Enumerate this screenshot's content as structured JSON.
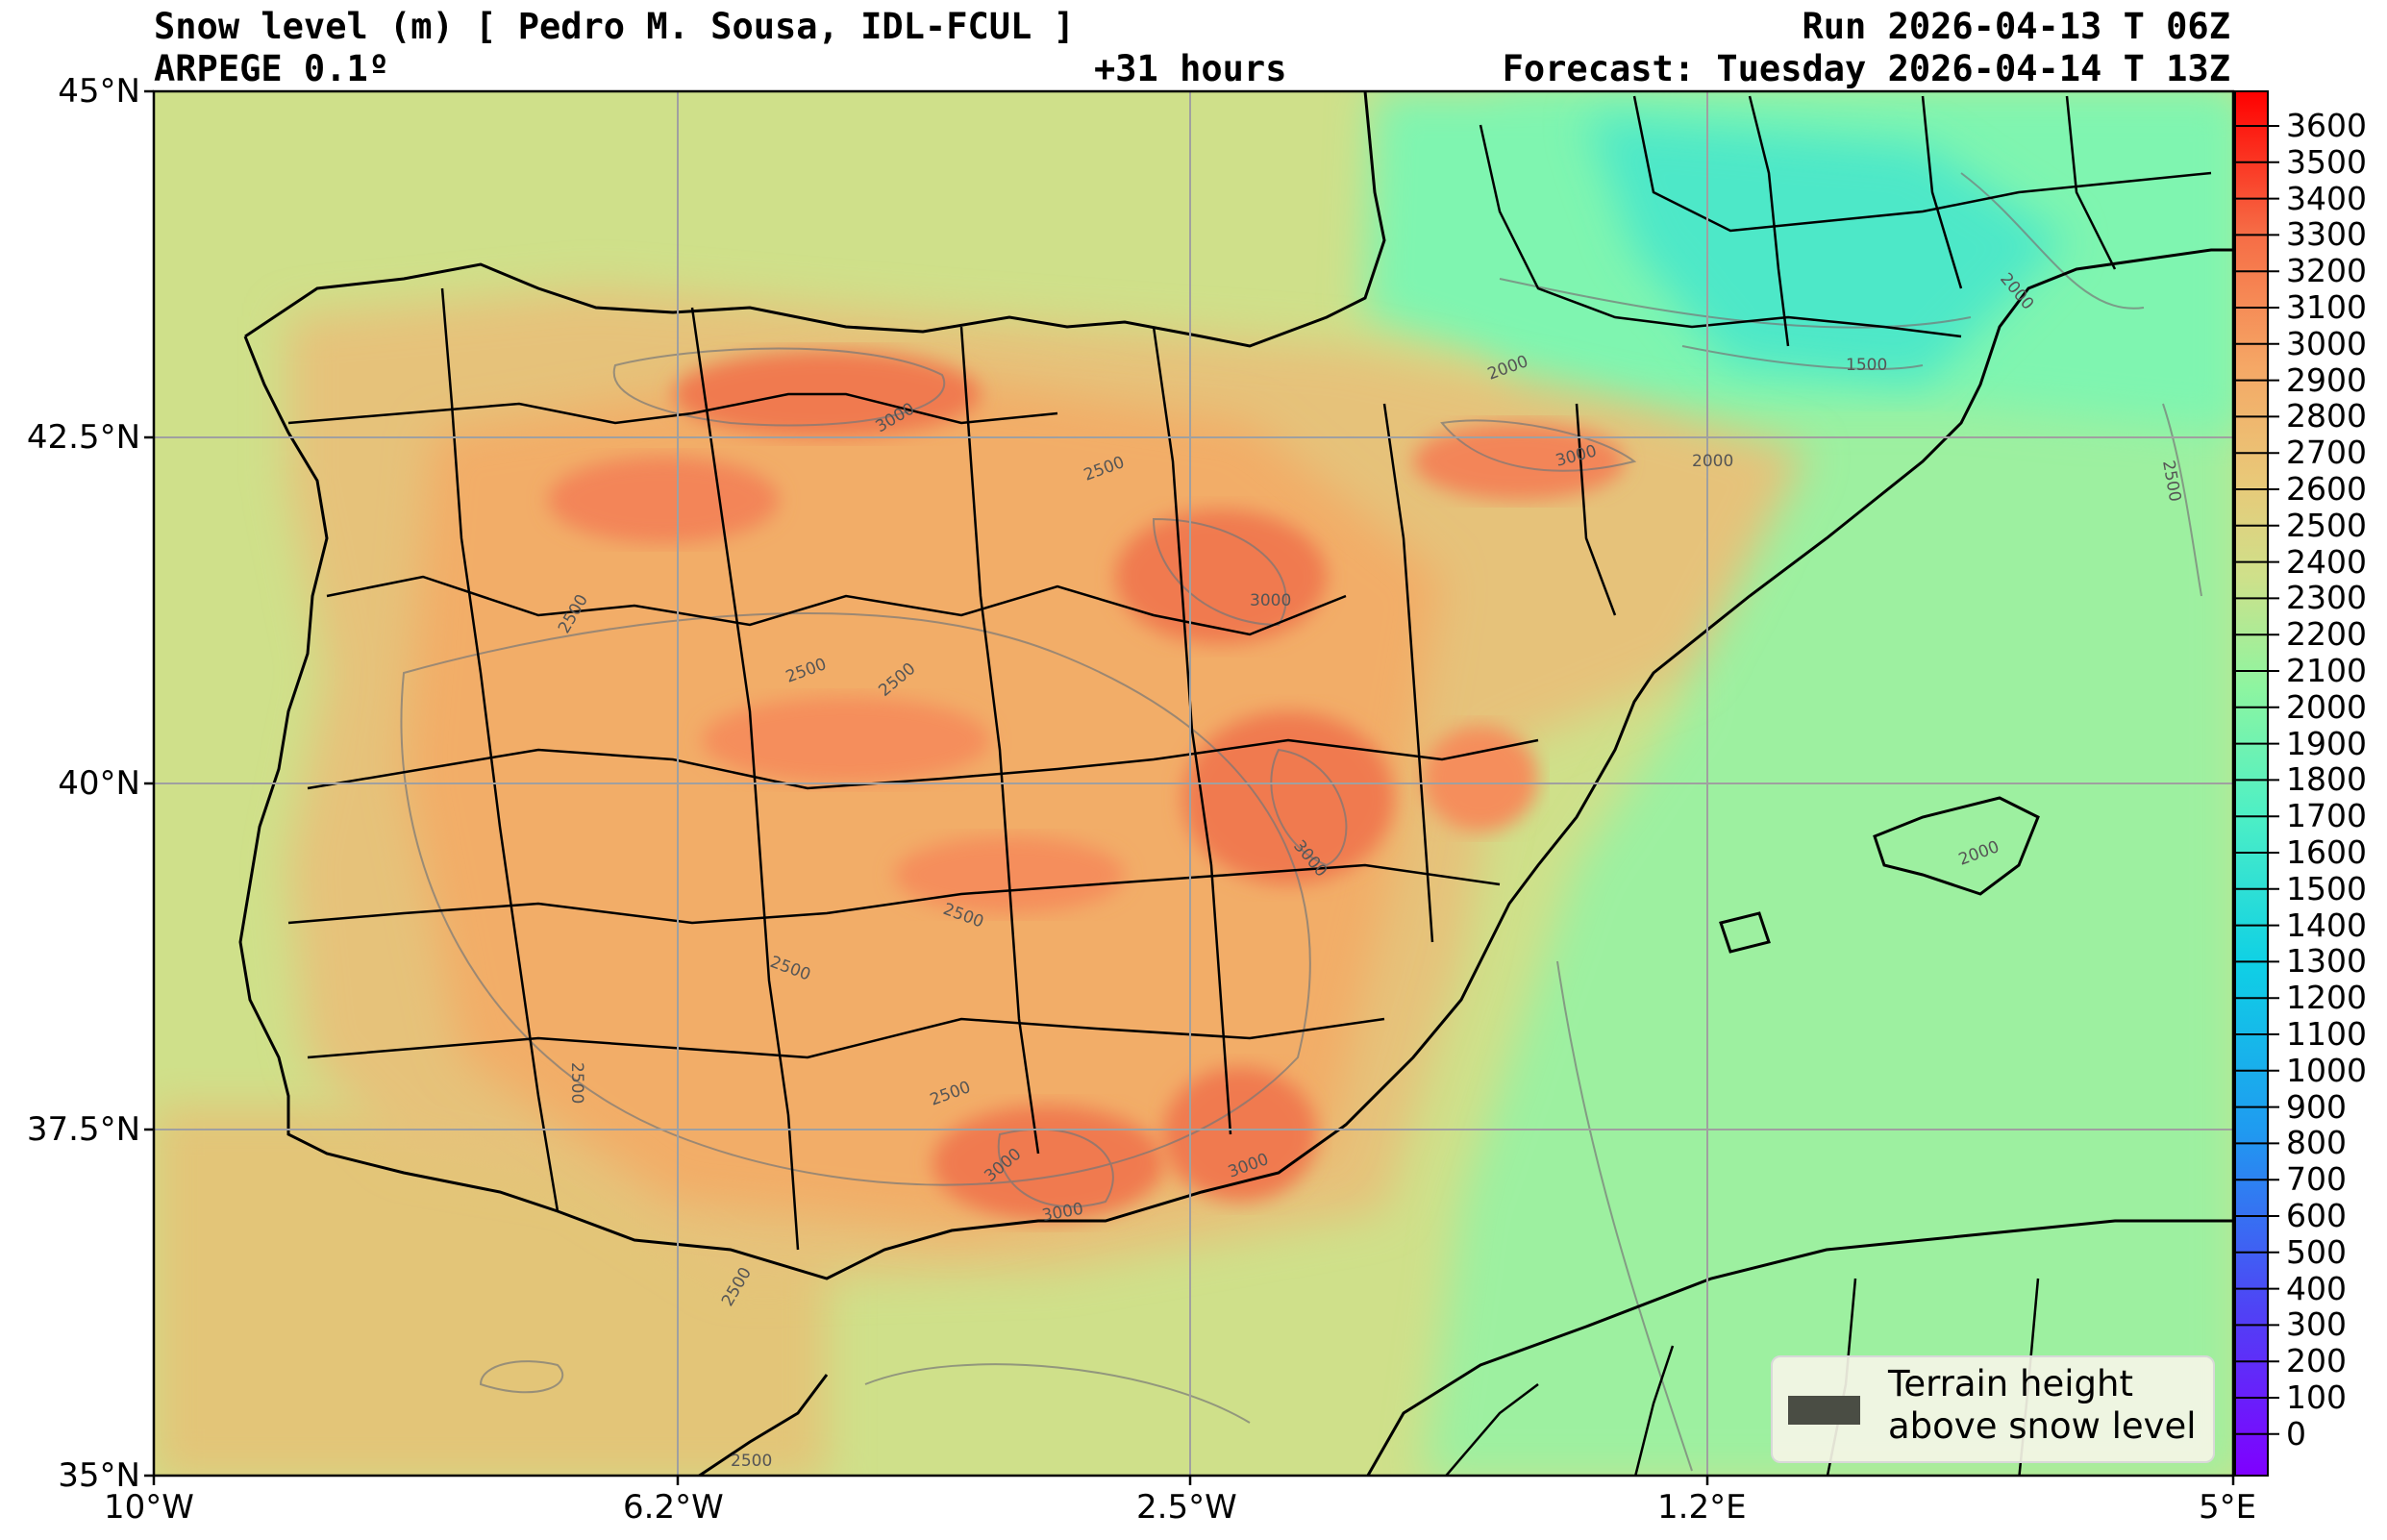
{
  "header": {
    "title_left": "Snow level (m) [ Pedro M. Sousa, IDL-FCUL ]",
    "title_right": "Run 2026-04-13 T 06Z",
    "model": "ARPEGE 0.1º",
    "lead": "+31 hours",
    "forecast": "Forecast: Tuesday 2026-04-14 T 13Z"
  },
  "axes": {
    "lat_labels": [
      "45°N",
      "42.5°N",
      "40°N",
      "37.5°N",
      "35°N"
    ],
    "lon_labels": [
      "10°W",
      "6.2°W",
      "2.5°W",
      "1.2°E",
      "5°E"
    ]
  },
  "colorbar": {
    "labels": [
      "3600",
      "3500",
      "3400",
      "3300",
      "3200",
      "3100",
      "3000",
      "2900",
      "2800",
      "2700",
      "2600",
      "2500",
      "2400",
      "2300",
      "2200",
      "2100",
      "2000",
      "1900",
      "1800",
      "1700",
      "1600",
      "1500",
      "1400",
      "1300",
      "1200",
      "1100",
      "1000",
      "900",
      "800",
      "700",
      "600",
      "500",
      "400",
      "300",
      "200",
      "100",
      "0"
    ]
  },
  "contour_labels": [
    "3000",
    "3000",
    "2500",
    "2500",
    "2500",
    "2500",
    "2500",
    "3000",
    "3000",
    "3000",
    "3000",
    "3000",
    "2500",
    "2500",
    "2500",
    "2000",
    "2000",
    "2000",
    "1500",
    "2000",
    "2500",
    "2500",
    "2500"
  ],
  "legend": {
    "line1": "Terrain height",
    "line2": "above snow level"
  },
  "colors": {
    "ocean_west": "#cfe08a",
    "land_plateau": "#f2b06a",
    "snow_peak": "#f07a50",
    "mediterranean": "#9df0a0",
    "cold_north": "#4ee8c8"
  }
}
